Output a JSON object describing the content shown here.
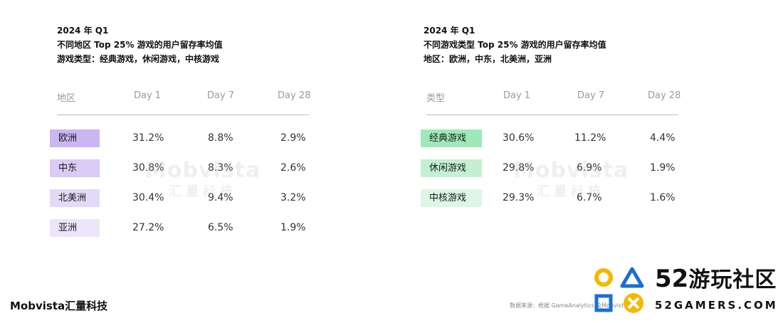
{
  "left": {
    "header": {
      "line1": "2024 年 Q1",
      "line2": "不同地区 Top 25% 游戏的用户留存率均值",
      "line3": "游戏类型：经典游戏，休闲游戏，中核游戏"
    },
    "columns": [
      "地区",
      "Day 1",
      "Day 7",
      "Day 28"
    ],
    "rows": [
      {
        "label": "欧洲",
        "d1": "31.2%",
        "d7": "8.8%",
        "d28": "2.9%",
        "color": "#c9b6f2"
      },
      {
        "label": "中东",
        "d1": "30.8%",
        "d7": "8.3%",
        "d28": "2.6%",
        "color": "#d9cbf6"
      },
      {
        "label": "北美洲",
        "d1": "30.4%",
        "d7": "9.4%",
        "d28": "3.2%",
        "color": "#e3d9f8"
      },
      {
        "label": "亚洲",
        "d1": "27.2%",
        "d7": "6.5%",
        "d28": "1.9%",
        "color": "#ece5fa"
      }
    ]
  },
  "right": {
    "header": {
      "line1": "2024 年 Q1",
      "line2": "不同游戏类型 Top 25% 游戏的用户留存率均值",
      "line3": "地区：欧洲，中东，北美洲，亚洲"
    },
    "columns": [
      "类型",
      "Day 1",
      "Day 7",
      "Day 28"
    ],
    "rows": [
      {
        "label": "经典游戏",
        "d1": "30.6%",
        "d7": "11.2%",
        "d28": "4.4%",
        "color": "#9fe8b9"
      },
      {
        "label": "休闲游戏",
        "d1": "29.8%",
        "d7": "6.9%",
        "d28": "1.9%",
        "color": "#c3f0d2"
      },
      {
        "label": "中核游戏",
        "d1": "29.3%",
        "d7": "6.7%",
        "d28": "1.6%",
        "color": "#ddf6e6"
      }
    ]
  },
  "watermark": {
    "en": "Mobvista",
    "cn": "汇量科技"
  },
  "footer": {
    "brand": "Mobvista汇量科技",
    "source": "数据来源：根据 GameAnalytics 及Mobvista整理"
  },
  "overlay_logo": {
    "number": "52",
    "name": "游玩社区",
    "url": "52GAMERS.COM",
    "colors": {
      "circle": "#f5b800",
      "triangle": "#1a6fd1",
      "square": "#1a6fd1",
      "cross": "#f5b800"
    }
  }
}
